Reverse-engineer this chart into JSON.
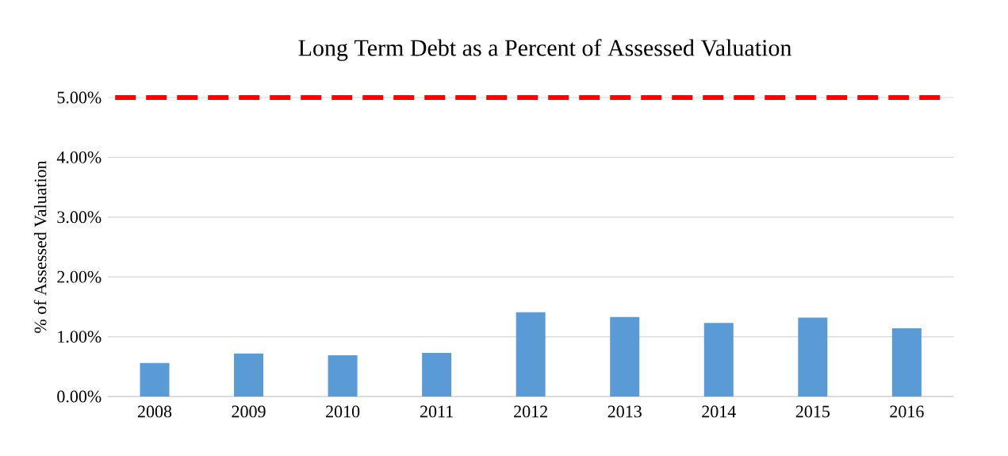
{
  "chart_data": {
    "type": "bar",
    "title": "Long Term Debt as a Percent of Assessed Valuation",
    "ylabel": "% of Assessed Valuation",
    "categories": [
      "2008",
      "2009",
      "2010",
      "2011",
      "2012",
      "2013",
      "2014",
      "2015",
      "2016"
    ],
    "values": [
      0.56,
      0.72,
      0.69,
      0.73,
      1.41,
      1.33,
      1.23,
      1.32,
      1.14
    ],
    "color": "#5b9bd5",
    "ylim": [
      0,
      5
    ],
    "yticks": [
      {
        "value": 0,
        "label": "0.00%"
      },
      {
        "value": 1,
        "label": "1.00%"
      },
      {
        "value": 2,
        "label": "2.00%"
      },
      {
        "value": 3,
        "label": "3.00%"
      },
      {
        "value": 4,
        "label": "4.00%"
      },
      {
        "value": 5,
        "label": "5.00%"
      }
    ],
    "grid": "y",
    "ref_lines": [
      {
        "axis": "y",
        "value": 5,
        "color": "#ff0000",
        "line_style": "dashed"
      }
    ]
  }
}
